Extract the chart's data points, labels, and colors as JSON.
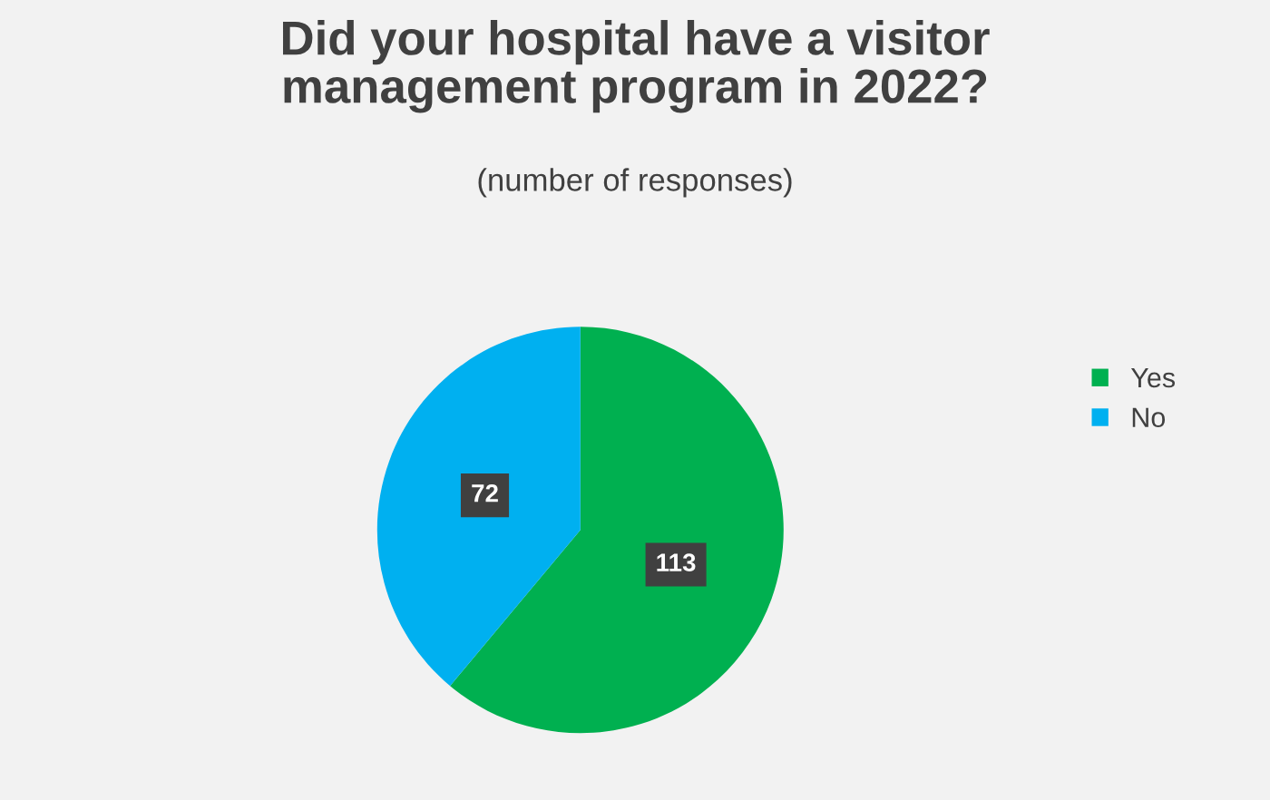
{
  "chart_data": {
    "type": "pie",
    "title": "Did your hospital have a visitor\nmanagement program in 2022?",
    "subtitle": "(number of responses)",
    "categories": [
      "Yes",
      "No"
    ],
    "values": [
      113,
      72
    ],
    "colors": [
      "#00b050",
      "#00b0f0"
    ],
    "data_labels": true,
    "legend": "right"
  }
}
